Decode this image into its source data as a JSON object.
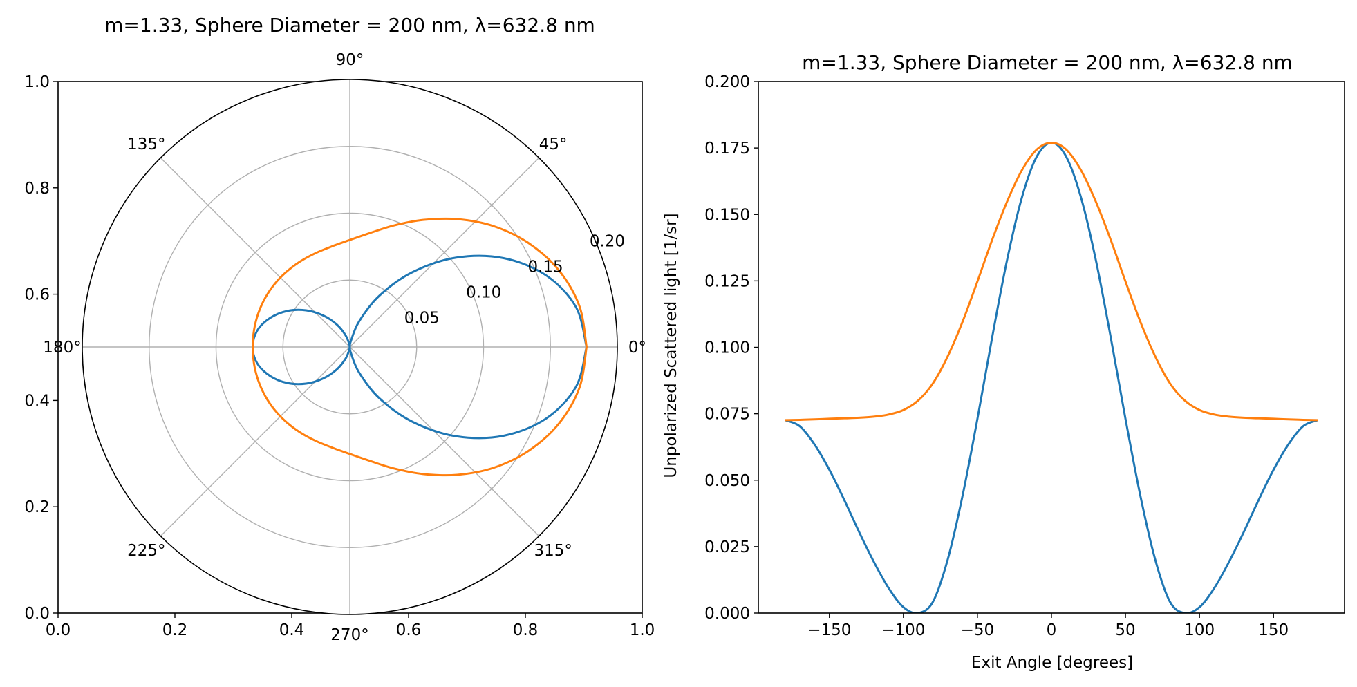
{
  "chart_data": [
    {
      "type": "line",
      "projection": "polar",
      "title": "m=1.33, Sphere Diameter = 200 nm, λ=632.8 nm",
      "frame_xlim": [
        0.0,
        1.0
      ],
      "frame_ylim": [
        0.0,
        1.0
      ],
      "frame_xticks": [
        "0.0",
        "0.2",
        "0.4",
        "0.6",
        "0.8",
        "1.0"
      ],
      "frame_yticks": [
        "0.0",
        "0.2",
        "0.4",
        "0.6",
        "0.8",
        "1.0"
      ],
      "rlim": [
        0,
        0.2
      ],
      "rticks": [
        0.05,
        0.1,
        0.15,
        0.2
      ],
      "rtick_labels": [
        "0.05",
        "0.10",
        "0.15",
        "0.20"
      ],
      "theta_ticks_deg": [
        0,
        45,
        90,
        135,
        180,
        225,
        270,
        315
      ],
      "theta_tick_labels": [
        "0°",
        "45°",
        "90°",
        "135°",
        "180°",
        "225°",
        "270°",
        "315°"
      ],
      "grid": true,
      "series": [
        {
          "color": "#1f77b4",
          "x": [
            0,
            10,
            20,
            30,
            40,
            50,
            60,
            70,
            80,
            90,
            100,
            110,
            120,
            130,
            140,
            150,
            160,
            170,
            180
          ],
          "y": [
            0.177,
            0.1717,
            0.1563,
            0.1328,
            0.1039,
            0.0731,
            0.0443,
            0.0203,
            0.0043,
            0.0,
            0.0022,
            0.0094,
            0.0193,
            0.0306,
            0.0426,
            0.0539,
            0.0634,
            0.0703,
            0.0726
          ]
        },
        {
          "color": "#ff7f0e",
          "x": [
            0,
            10,
            20,
            30,
            40,
            50,
            60,
            70,
            80,
            90,
            100,
            110,
            120,
            130,
            140,
            150,
            160,
            170,
            180
          ],
          "y": [
            0.177,
            0.1744,
            0.1666,
            0.1548,
            0.1405,
            0.1248,
            0.1097,
            0.0967,
            0.0865,
            0.08,
            0.0764,
            0.0747,
            0.0739,
            0.0735,
            0.0733,
            0.0731,
            0.0729,
            0.0727,
            0.0726
          ]
        }
      ]
    },
    {
      "type": "line",
      "title": "m=1.33, Sphere Diameter = 200 nm, λ=632.8 nm",
      "xlabel": "Exit Angle [degrees]",
      "ylabel": "Unpolarized Scattered light [1/sr]",
      "xlim": [
        -198,
        198
      ],
      "ylim": [
        0.0,
        0.2
      ],
      "xticks": [
        -150,
        -100,
        -50,
        0,
        50,
        100,
        150
      ],
      "xtick_labels": [
        "−150",
        "−100",
        "−50",
        "0",
        "50",
        "100",
        "150"
      ],
      "yticks": [
        0.0,
        0.025,
        0.05,
        0.075,
        0.1,
        0.125,
        0.15,
        0.175,
        0.2
      ],
      "ytick_labels": [
        "0.000",
        "0.025",
        "0.050",
        "0.075",
        "0.100",
        "0.125",
        "0.150",
        "0.175",
        "0.200"
      ],
      "grid": false,
      "series": [
        {
          "color": "#1f77b4",
          "x": [
            -180,
            -170,
            -160,
            -150,
            -140,
            -130,
            -120,
            -110,
            -100,
            -90,
            -80,
            -70,
            -60,
            -50,
            -40,
            -30,
            -20,
            -10,
            0,
            10,
            20,
            30,
            40,
            50,
            60,
            70,
            80,
            90,
            100,
            110,
            120,
            130,
            140,
            150,
            160,
            170,
            180
          ],
          "y": [
            0.0726,
            0.0703,
            0.0634,
            0.0539,
            0.0426,
            0.0306,
            0.0193,
            0.0094,
            0.0022,
            0.0,
            0.0043,
            0.0203,
            0.0443,
            0.0731,
            0.1039,
            0.1328,
            0.1563,
            0.1717,
            0.177,
            0.1717,
            0.1563,
            0.1328,
            0.1039,
            0.0731,
            0.0443,
            0.0203,
            0.0043,
            0.0,
            0.0022,
            0.0094,
            0.0193,
            0.0306,
            0.0426,
            0.0539,
            0.0634,
            0.0703,
            0.0726
          ]
        },
        {
          "color": "#ff7f0e",
          "x": [
            -180,
            -170,
            -160,
            -150,
            -140,
            -130,
            -120,
            -110,
            -100,
            -90,
            -80,
            -70,
            -60,
            -50,
            -40,
            -30,
            -20,
            -10,
            0,
            10,
            20,
            30,
            40,
            50,
            60,
            70,
            80,
            90,
            100,
            110,
            120,
            130,
            140,
            150,
            160,
            170,
            180
          ],
          "y": [
            0.0726,
            0.0727,
            0.0729,
            0.0731,
            0.0733,
            0.0735,
            0.0739,
            0.0747,
            0.0764,
            0.08,
            0.0865,
            0.0967,
            0.1097,
            0.1248,
            0.1405,
            0.1548,
            0.1666,
            0.1744,
            0.177,
            0.1744,
            0.1666,
            0.1548,
            0.1405,
            0.1248,
            0.1097,
            0.0967,
            0.0865,
            0.08,
            0.0764,
            0.0747,
            0.0739,
            0.0735,
            0.0733,
            0.0731,
            0.0729,
            0.0727,
            0.0726
          ]
        }
      ]
    }
  ]
}
